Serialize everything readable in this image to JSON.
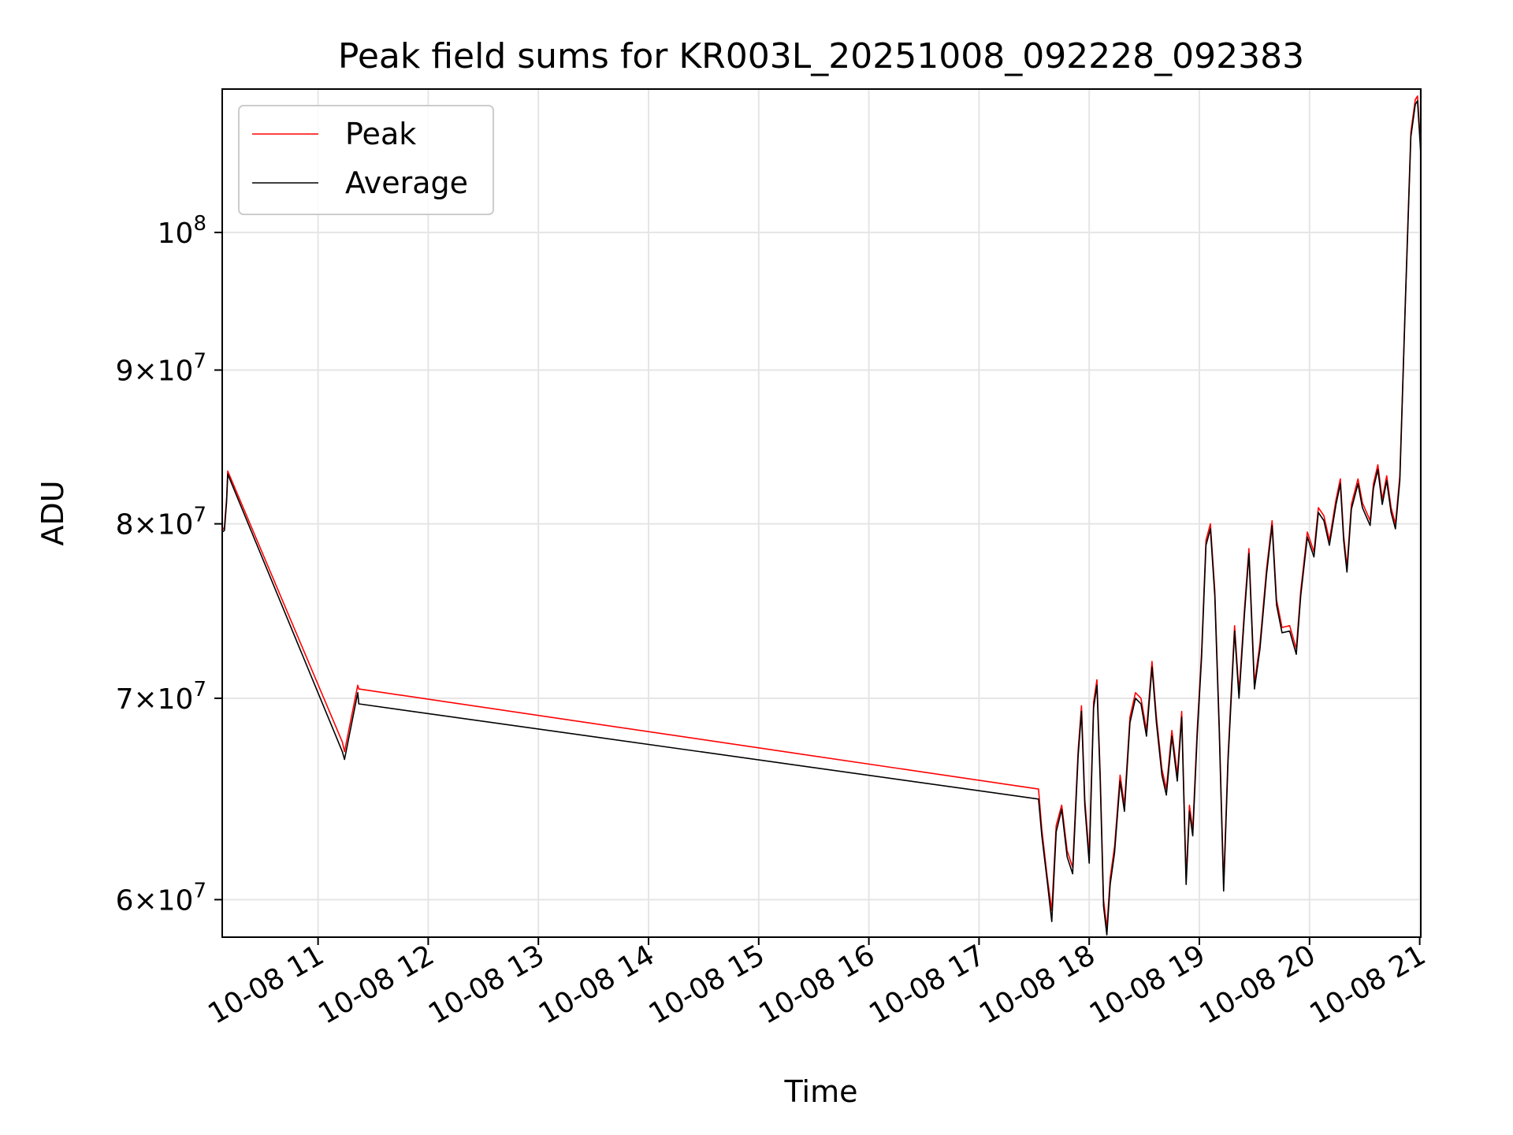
{
  "chart_data": {
    "type": "line",
    "title": "Peak field sums for KR003L_20251008_092228_092383",
    "xlabel": "Time",
    "ylabel": "ADU",
    "yscale": "log",
    "xlim_hours": [
      10.13,
      21.01
    ],
    "ylim": [
      58300000,
      111600000
    ],
    "grid": true,
    "legend_position": "upper-left",
    "x_ticks": [
      {
        "hour": 11,
        "label": "10-08 11"
      },
      {
        "hour": 12,
        "label": "10-08 12"
      },
      {
        "hour": 13,
        "label": "10-08 13"
      },
      {
        "hour": 14,
        "label": "10-08 14"
      },
      {
        "hour": 15,
        "label": "10-08 15"
      },
      {
        "hour": 16,
        "label": "10-08 16"
      },
      {
        "hour": 17,
        "label": "10-08 17"
      },
      {
        "hour": 18,
        "label": "10-08 18"
      },
      {
        "hour": 19,
        "label": "10-08 19"
      },
      {
        "hour": 20,
        "label": "10-08 20"
      },
      {
        "hour": 21,
        "label": "10-08 21"
      }
    ],
    "y_ticks": [
      {
        "value": 60000000,
        "mantissa": "6",
        "base": "10",
        "exp": "7"
      },
      {
        "value": 70000000,
        "mantissa": "7",
        "base": "10",
        "exp": "7"
      },
      {
        "value": 80000000,
        "mantissa": "8",
        "base": "10",
        "exp": "7"
      },
      {
        "value": 90000000,
        "mantissa": "9",
        "base": "10",
        "exp": "7"
      },
      {
        "value": 100000000,
        "mantissa": "",
        "base": "10",
        "exp": "8"
      }
    ],
    "series": [
      {
        "name": "Peak",
        "color": "#ff0000",
        "points": [
          [
            10.13,
            79600000
          ],
          [
            10.15,
            79800000
          ],
          [
            10.17,
            81600000
          ],
          [
            10.18,
            83300000
          ],
          [
            11.22,
            67700000
          ],
          [
            11.24,
            67200000
          ],
          [
            11.36,
            70700000
          ],
          [
            11.37,
            70500000
          ],
          [
            17.54,
            65300000
          ],
          [
            17.57,
            63300000
          ],
          [
            17.62,
            61000000
          ],
          [
            17.66,
            59500000
          ],
          [
            17.7,
            63500000
          ],
          [
            17.75,
            64500000
          ],
          [
            17.8,
            62300000
          ],
          [
            17.85,
            61500000
          ],
          [
            17.9,
            67300000
          ],
          [
            17.93,
            69600000
          ],
          [
            17.96,
            64800000
          ],
          [
            18.0,
            62000000
          ],
          [
            18.04,
            69800000
          ],
          [
            18.07,
            71000000
          ],
          [
            18.1,
            66000000
          ],
          [
            18.13,
            60000000
          ],
          [
            18.16,
            58700000
          ],
          [
            18.19,
            61000000
          ],
          [
            18.23,
            62500000
          ],
          [
            18.28,
            66000000
          ],
          [
            18.32,
            64500000
          ],
          [
            18.37,
            69000000
          ],
          [
            18.42,
            70300000
          ],
          [
            18.47,
            70000000
          ],
          [
            18.52,
            68300000
          ],
          [
            18.57,
            72000000
          ],
          [
            18.61,
            69000000
          ],
          [
            18.66,
            66300000
          ],
          [
            18.7,
            65300000
          ],
          [
            18.75,
            68300000
          ],
          [
            18.8,
            66000000
          ],
          [
            18.84,
            69300000
          ],
          [
            18.88,
            61000000
          ],
          [
            18.91,
            64500000
          ],
          [
            18.94,
            63300000
          ],
          [
            18.98,
            68300000
          ],
          [
            19.02,
            72500000
          ],
          [
            19.06,
            79000000
          ],
          [
            19.1,
            80000000
          ],
          [
            19.14,
            76000000
          ],
          [
            19.18,
            68600000
          ],
          [
            19.22,
            60700000
          ],
          [
            19.26,
            67000000
          ],
          [
            19.32,
            74000000
          ],
          [
            19.36,
            70300000
          ],
          [
            19.41,
            75000000
          ],
          [
            19.45,
            78500000
          ],
          [
            19.5,
            70800000
          ],
          [
            19.55,
            73000000
          ],
          [
            19.61,
            77300000
          ],
          [
            19.66,
            80200000
          ],
          [
            19.7,
            75500000
          ],
          [
            19.75,
            73900000
          ],
          [
            19.82,
            74000000
          ],
          [
            19.88,
            72700000
          ],
          [
            19.92,
            76000000
          ],
          [
            19.98,
            79500000
          ],
          [
            20.04,
            78300000
          ],
          [
            20.08,
            81000000
          ],
          [
            20.13,
            80500000
          ],
          [
            20.18,
            79000000
          ],
          [
            20.24,
            81500000
          ],
          [
            20.28,
            82800000
          ],
          [
            20.31,
            79300000
          ],
          [
            20.34,
            77400000
          ],
          [
            20.38,
            81200000
          ],
          [
            20.44,
            82800000
          ],
          [
            20.48,
            81300000
          ],
          [
            20.55,
            80200000
          ],
          [
            20.58,
            82500000
          ],
          [
            20.62,
            83700000
          ],
          [
            20.66,
            81500000
          ],
          [
            20.7,
            83000000
          ],
          [
            20.74,
            81000000
          ],
          [
            20.78,
            80000000
          ],
          [
            20.82,
            83000000
          ],
          [
            20.87,
            95000000
          ],
          [
            20.92,
            108000000
          ],
          [
            20.96,
            110700000
          ],
          [
            20.98,
            111000000
          ],
          [
            21.01,
            106500000
          ]
        ]
      },
      {
        "name": "Average",
        "color": "#000000",
        "points": [
          [
            10.13,
            79500000
          ],
          [
            10.15,
            79600000
          ],
          [
            10.17,
            81400000
          ],
          [
            10.18,
            83100000
          ],
          [
            11.22,
            67200000
          ],
          [
            11.24,
            66800000
          ],
          [
            11.36,
            70300000
          ],
          [
            11.37,
            69700000
          ],
          [
            17.54,
            64800000
          ],
          [
            17.57,
            63000000
          ],
          [
            17.62,
            60800000
          ],
          [
            17.66,
            59000000
          ],
          [
            17.7,
            63200000
          ],
          [
            17.75,
            64300000
          ],
          [
            17.8,
            62000000
          ],
          [
            17.85,
            61200000
          ],
          [
            17.9,
            67000000
          ],
          [
            17.93,
            69300000
          ],
          [
            17.96,
            64500000
          ],
          [
            18.0,
            61700000
          ],
          [
            18.04,
            69500000
          ],
          [
            18.07,
            70700000
          ],
          [
            18.1,
            65700000
          ],
          [
            18.13,
            59700000
          ],
          [
            18.16,
            58400000
          ],
          [
            18.19,
            60700000
          ],
          [
            18.23,
            62200000
          ],
          [
            18.28,
            65700000
          ],
          [
            18.32,
            64200000
          ],
          [
            18.37,
            68700000
          ],
          [
            18.42,
            70000000
          ],
          [
            18.47,
            69700000
          ],
          [
            18.52,
            68000000
          ],
          [
            18.57,
            71700000
          ],
          [
            18.61,
            68700000
          ],
          [
            18.66,
            66000000
          ],
          [
            18.7,
            65000000
          ],
          [
            18.75,
            68000000
          ],
          [
            18.8,
            65700000
          ],
          [
            18.84,
            69000000
          ],
          [
            18.88,
            60700000
          ],
          [
            18.91,
            64200000
          ],
          [
            18.94,
            63000000
          ],
          [
            18.98,
            68000000
          ],
          [
            19.02,
            72200000
          ],
          [
            19.06,
            78700000
          ],
          [
            19.1,
            79700000
          ],
          [
            19.14,
            75700000
          ],
          [
            19.18,
            68300000
          ],
          [
            19.22,
            60400000
          ],
          [
            19.26,
            66700000
          ],
          [
            19.32,
            73700000
          ],
          [
            19.36,
            70000000
          ],
          [
            19.41,
            74700000
          ],
          [
            19.45,
            78200000
          ],
          [
            19.5,
            70500000
          ],
          [
            19.55,
            72700000
          ],
          [
            19.61,
            77000000
          ],
          [
            19.66,
            79900000
          ],
          [
            19.7,
            75200000
          ],
          [
            19.75,
            73600000
          ],
          [
            19.82,
            73700000
          ],
          [
            19.88,
            72400000
          ],
          [
            19.92,
            75700000
          ],
          [
            19.98,
            79200000
          ],
          [
            20.04,
            78000000
          ],
          [
            20.08,
            80700000
          ],
          [
            20.13,
            80200000
          ],
          [
            20.18,
            78700000
          ],
          [
            20.24,
            81200000
          ],
          [
            20.28,
            82500000
          ],
          [
            20.31,
            79000000
          ],
          [
            20.34,
            77100000
          ],
          [
            20.38,
            80900000
          ],
          [
            20.44,
            82500000
          ],
          [
            20.48,
            81000000
          ],
          [
            20.55,
            79900000
          ],
          [
            20.58,
            82200000
          ],
          [
            20.62,
            83400000
          ],
          [
            20.66,
            81200000
          ],
          [
            20.7,
            82700000
          ],
          [
            20.74,
            80700000
          ],
          [
            20.78,
            79700000
          ],
          [
            20.82,
            82700000
          ],
          [
            20.87,
            94700000
          ],
          [
            20.92,
            107600000
          ],
          [
            20.96,
            110300000
          ],
          [
            20.98,
            110600000
          ],
          [
            21.01,
            106200000
          ]
        ]
      }
    ]
  }
}
